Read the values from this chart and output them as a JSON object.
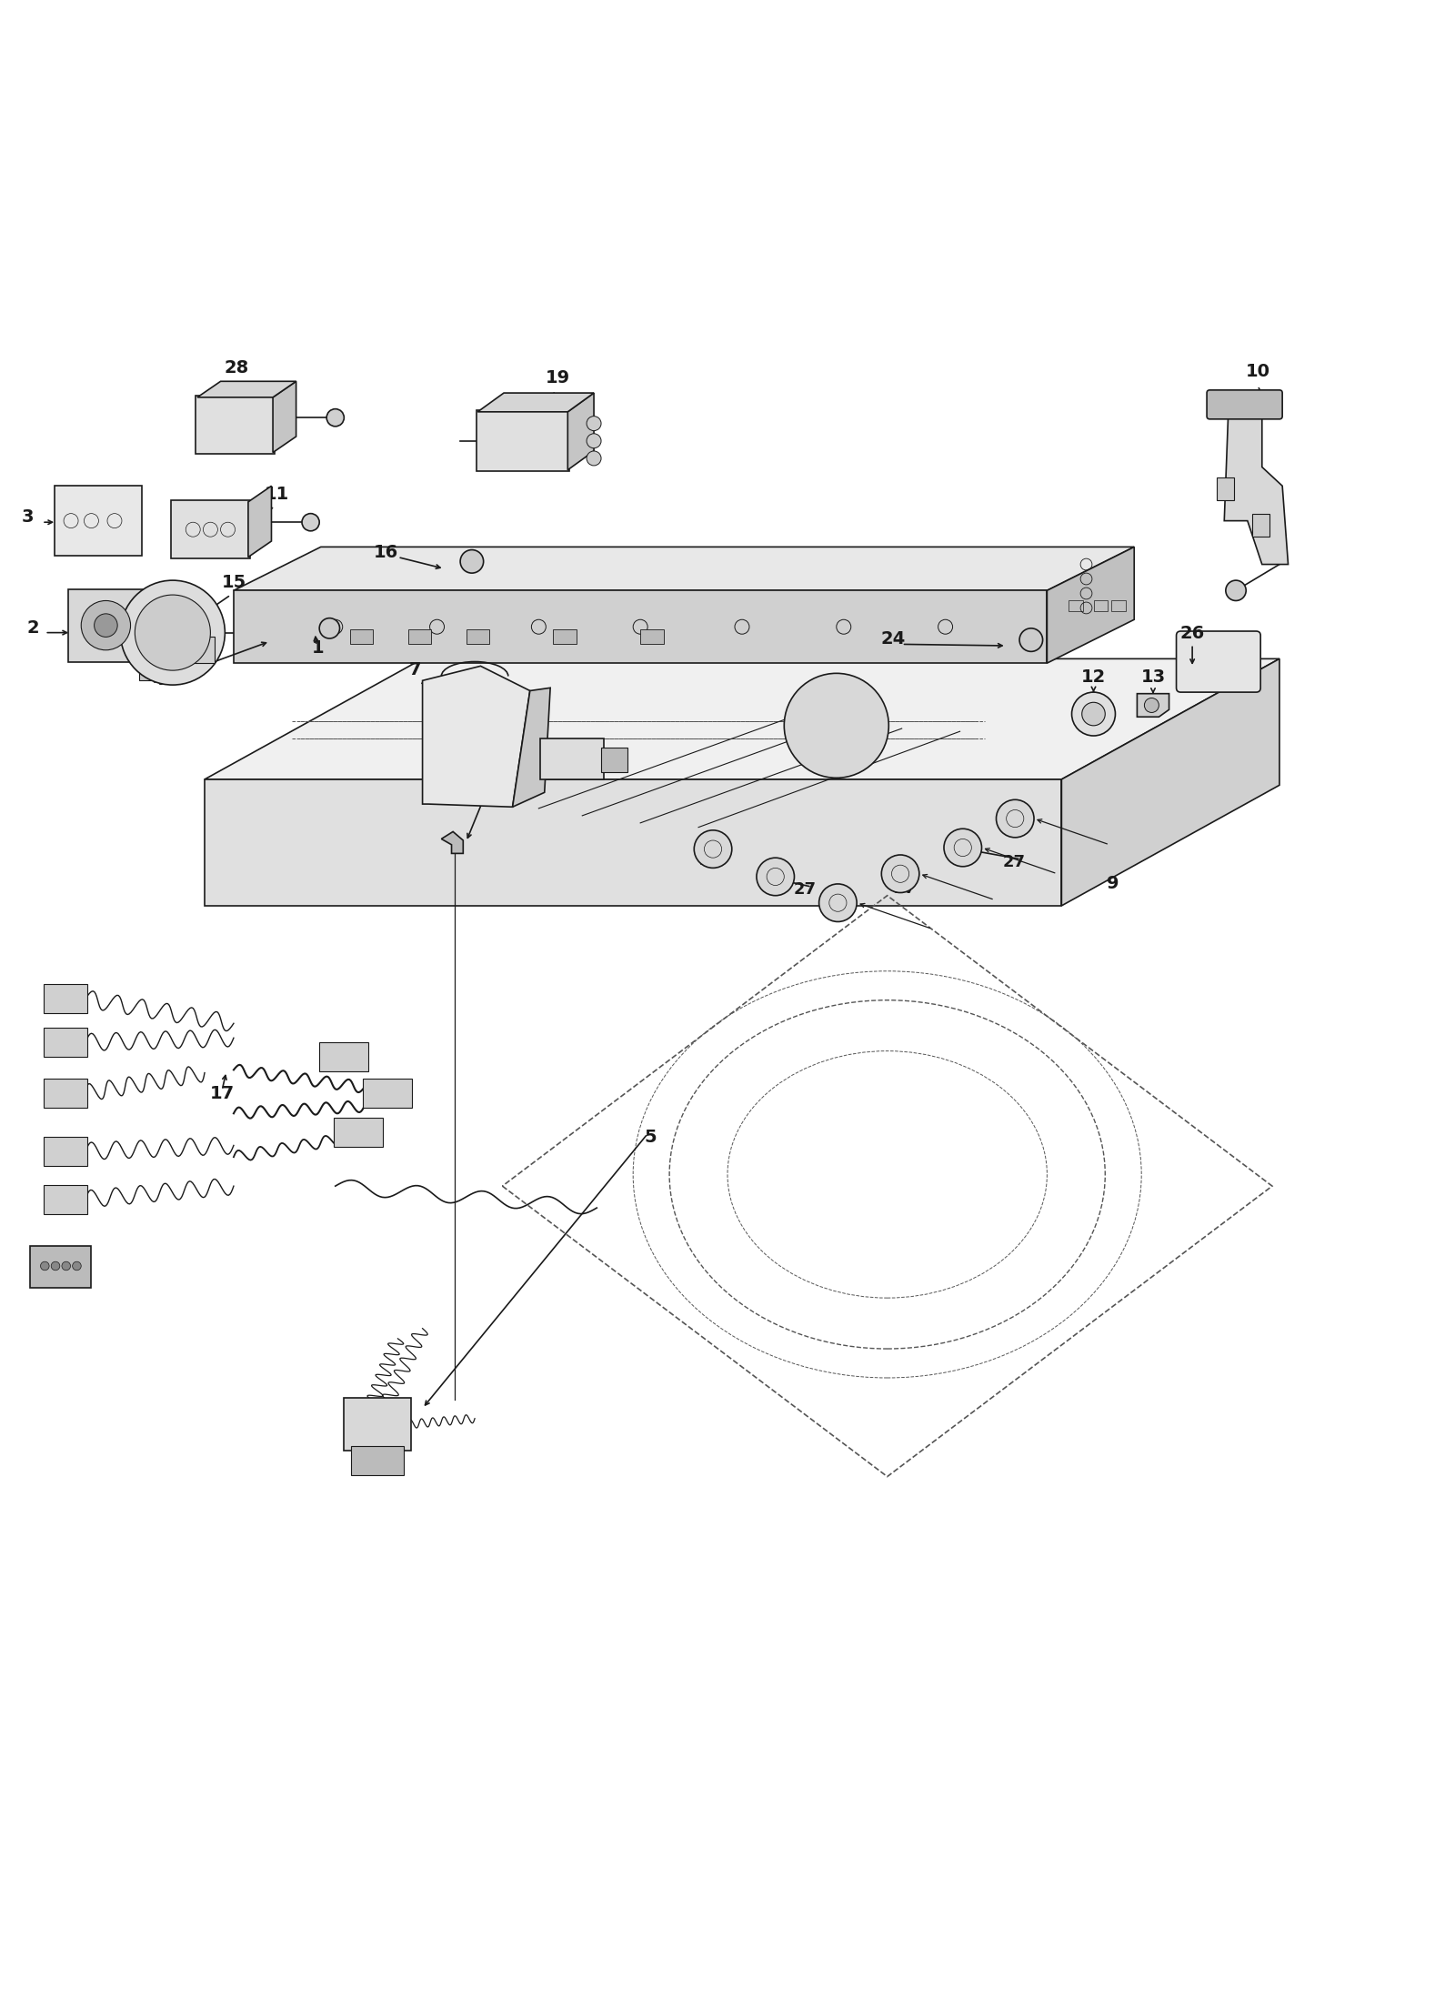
{
  "bg_color": "#ffffff",
  "line_color": "#1a1a1a",
  "dashed_color": "#555555",
  "fig_width": 16.0,
  "fig_height": 22.09,
  "dpi": 100
}
